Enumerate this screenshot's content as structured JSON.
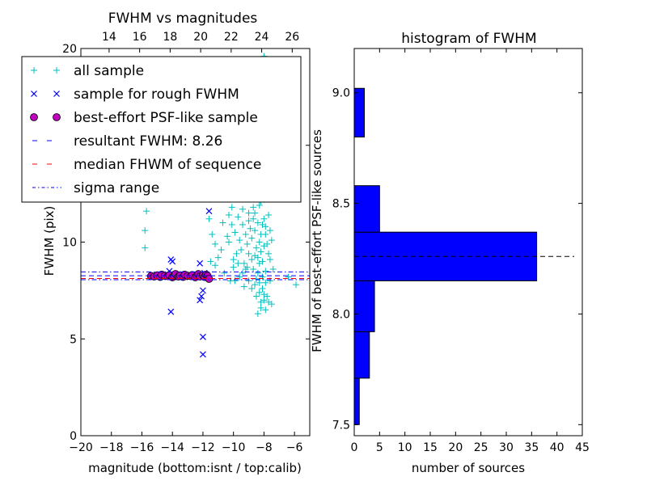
{
  "chart_data": [
    {
      "type": "scatter",
      "title": "FWHM vs magnitudes",
      "xlabel": "magnitude (bottom:isnt / top:calib)",
      "ylabel": "FWHM (pix)",
      "xlim": [
        -20,
        -5
      ],
      "ylim": [
        0,
        20
      ],
      "x_ticks": [
        -20,
        -18,
        -16,
        -14,
        -12,
        -10,
        -8,
        -6
      ],
      "x_tick_labels": [
        "−20",
        "−18",
        "−16",
        "−14",
        "−12",
        "−10",
        "−8",
        "−6"
      ],
      "y_ticks": [
        0,
        5,
        10,
        15,
        20
      ],
      "y_tick_labels": [
        "0",
        "5",
        "10",
        "15",
        "20"
      ],
      "top_axis": {
        "ticks": [
          14,
          16,
          18,
          20,
          22,
          24,
          26
        ],
        "offset": 32.15
      },
      "legend": {
        "placement": "upper-left",
        "entries": [
          {
            "marker": "plus",
            "color": "#00BFBF",
            "label": "all sample"
          },
          {
            "marker": "x",
            "color": "#0000FF",
            "label": "sample for rough FWHM"
          },
          {
            "marker": "circle",
            "color": "#BF00BF",
            "label": "best-effort PSF-like sample"
          },
          {
            "marker": "dash",
            "color": "#0000FF",
            "label": "resultant FWHM: 8.26"
          },
          {
            "marker": "dash",
            "color": "#FF0000",
            "label": "median FHWM of sequence"
          },
          {
            "marker": "dashdot",
            "color": "#0000FF",
            "label": "sigma range"
          }
        ]
      },
      "series": [
        {
          "name": "all sample",
          "marker": "plus",
          "color": "#00BFBF",
          "points": [
            [
              -15.7,
              11.6
            ],
            [
              -15.8,
              10.6
            ],
            [
              -15.8,
              9.7
            ],
            [
              -15.2,
              15.8
            ],
            [
              -12.2,
              14.0
            ],
            [
              -12.1,
              15.0
            ],
            [
              -11.2,
              14.5
            ],
            [
              -10.3,
              10.0
            ],
            [
              -10.4,
              10.3
            ],
            [
              -11.0,
              9.2
            ],
            [
              -10.6,
              8.4
            ],
            [
              -10.2,
              8.0
            ],
            [
              -11.2,
              8.8
            ],
            [
              -10.8,
              9.6
            ],
            [
              -9.5,
              12.8
            ],
            [
              -9.0,
              11.5
            ],
            [
              -9.2,
              8.6
            ],
            [
              -8.8,
              10.2
            ],
            [
              -8.6,
              9.3
            ],
            [
              -8.3,
              8.9
            ],
            [
              -8.1,
              7.6
            ],
            [
              -8.0,
              7.0
            ],
            [
              -8.2,
              6.6
            ],
            [
              -8.4,
              6.3
            ],
            [
              -7.8,
              7.2
            ],
            [
              -7.5,
              6.8
            ],
            [
              -7.4,
              8.6
            ],
            [
              -6.4,
              8.2
            ],
            [
              -5.9,
              7.8
            ],
            [
              -8.7,
              11.8
            ],
            [
              -8.9,
              13.3
            ],
            [
              -9.3,
              14.1
            ],
            [
              -8.1,
              13.7
            ],
            [
              -8.5,
              12.6
            ],
            [
              -8.2,
              12.1
            ],
            [
              -9.8,
              9.4
            ],
            [
              -10.0,
              8.7
            ],
            [
              -9.6,
              8.2
            ],
            [
              -9.9,
              8.0
            ],
            [
              -7.9,
              10.8
            ],
            [
              -8.0,
              11.2
            ],
            [
              -8.3,
              10.0
            ],
            [
              -8.6,
              10.6
            ],
            [
              -8.1,
              9.0
            ],
            [
              -8.4,
              9.2
            ],
            [
              -8.0,
              9.8
            ],
            [
              -7.7,
              9.4
            ],
            [
              -7.6,
              8.0
            ],
            [
              -7.9,
              7.9
            ],
            [
              -8.3,
              7.4
            ],
            [
              -8.6,
              7.8
            ],
            [
              -9.1,
              9.9
            ],
            [
              -9.4,
              10.9
            ],
            [
              -9.7,
              11.3
            ],
            [
              -10.1,
              11.8
            ],
            [
              -10.4,
              12.3
            ],
            [
              -10.6,
              13.4
            ],
            [
              -10.9,
              12.6
            ],
            [
              -9.1,
              12.3
            ],
            [
              -8.8,
              12.9
            ],
            [
              -7.8,
              12.4
            ],
            [
              -8.2,
              14.5
            ],
            [
              -8.6,
              15.2
            ],
            [
              -9.4,
              16.0
            ],
            [
              -9.8,
              17.2
            ],
            [
              -10.2,
              18.1
            ],
            [
              -8.9,
              18.9
            ],
            [
              -8.0,
              19.6
            ],
            [
              -9.0,
              20.2
            ],
            [
              -10.5,
              14.6
            ],
            [
              -10.9,
              15.4
            ],
            [
              -11.3,
              13.1
            ],
            [
              -11.5,
              12.2
            ],
            [
              -11.6,
              11.2
            ],
            [
              -11.4,
              10.4
            ],
            [
              -11.5,
              9.0
            ],
            [
              -11.2,
              9.9
            ],
            [
              -10.7,
              11.0
            ],
            [
              -10.0,
              9.1
            ],
            [
              -9.5,
              9.6
            ],
            [
              -9.3,
              8.9
            ],
            [
              -9.0,
              9.4
            ],
            [
              -8.7,
              8.6
            ],
            [
              -8.5,
              8.1
            ],
            [
              -8.4,
              8.4
            ],
            [
              -8.1,
              8.2
            ],
            [
              -7.9,
              8.5
            ],
            [
              -7.6,
              9.1
            ],
            [
              -7.8,
              9.9
            ],
            [
              -8.2,
              10.4
            ],
            [
              -8.4,
              11.0
            ],
            [
              -8.6,
              11.5
            ],
            [
              -8.3,
              11.9
            ],
            [
              -8.0,
              12.2
            ],
            [
              -7.7,
              11.4
            ],
            [
              -7.5,
              10.1
            ],
            [
              -7.6,
              10.6
            ],
            [
              -8.9,
              10.7
            ],
            [
              -9.2,
              10.4
            ],
            [
              -9.6,
              10.1
            ],
            [
              -9.9,
              10.5
            ],
            [
              -10.1,
              10.9
            ],
            [
              -10.3,
              11.4
            ],
            [
              -9.4,
              11.7
            ],
            [
              -9.0,
              11.1
            ],
            [
              -8.7,
              11.2
            ],
            [
              -8.1,
              10.9
            ],
            [
              -7.9,
              10.4
            ],
            [
              -8.2,
              9.5
            ],
            [
              -8.5,
              9.7
            ],
            [
              -8.8,
              9.1
            ],
            [
              -9.1,
              8.7
            ],
            [
              -9.4,
              8.4
            ],
            [
              -9.7,
              8.9
            ],
            [
              -8.3,
              7.9
            ],
            [
              -8.0,
              7.3
            ],
            [
              -7.7,
              6.9
            ],
            [
              -7.9,
              6.5
            ],
            [
              -8.2,
              6.9
            ],
            [
              -8.5,
              7.2
            ],
            [
              -8.8,
              7.6
            ],
            [
              -9.0,
              8.0
            ],
            [
              -9.3,
              7.7
            ]
          ]
        },
        {
          "name": "sample for rough FWHM",
          "marker": "x",
          "color": "#0000FF",
          "points": [
            [
              -14.1,
              9.1
            ],
            [
              -14.0,
              9.0
            ],
            [
              -14.2,
              8.5
            ],
            [
              -14.1,
              6.4
            ],
            [
              -12.2,
              8.9
            ],
            [
              -11.6,
              11.6
            ],
            [
              -12.1,
              7.2
            ],
            [
              -12.2,
              7.0
            ],
            [
              -12.0,
              7.5
            ],
            [
              -12.0,
              5.1
            ],
            [
              -12.0,
              4.2
            ],
            [
              -13.1,
              8.3
            ],
            [
              -12.5,
              8.2
            ],
            [
              -11.9,
              8.4
            ],
            [
              -12.6,
              8.3
            ],
            [
              -14.6,
              8.2
            ],
            [
              -13.6,
              8.3
            ]
          ]
        },
        {
          "name": "best-effort PSF-like sample",
          "marker": "circle",
          "color": "#BF00BF",
          "points": [
            [
              -15.4,
              8.25
            ],
            [
              -15.2,
              8.22
            ],
            [
              -15.0,
              8.28
            ],
            [
              -14.8,
              8.2
            ],
            [
              -14.7,
              8.32
            ],
            [
              -14.5,
              8.26
            ],
            [
              -14.3,
              8.24
            ],
            [
              -14.2,
              8.3
            ],
            [
              -14.0,
              8.18
            ],
            [
              -13.9,
              8.27
            ],
            [
              -13.8,
              8.35
            ],
            [
              -13.6,
              8.22
            ],
            [
              -13.5,
              8.28
            ],
            [
              -13.3,
              8.2
            ],
            [
              -13.2,
              8.32
            ],
            [
              -13.0,
              8.26
            ],
            [
              -12.8,
              8.24
            ],
            [
              -12.7,
              8.3
            ],
            [
              -12.5,
              8.18
            ],
            [
              -12.4,
              8.27
            ],
            [
              -12.3,
              8.35
            ],
            [
              -12.2,
              8.22
            ],
            [
              -12.0,
              8.28
            ],
            [
              -11.9,
              8.2
            ],
            [
              -11.8,
              8.32
            ],
            [
              -11.7,
              8.26
            ],
            [
              -11.6,
              8.1
            ]
          ]
        }
      ],
      "hlines": [
        {
          "y": 8.26,
          "style": "dashed",
          "color": "#0000FF"
        },
        {
          "y": 8.12,
          "style": "dashed",
          "color": "#FF0000"
        },
        {
          "y": 8.46,
          "style": "dashdot",
          "color": "#0000FF"
        },
        {
          "y": 8.06,
          "style": "dashdot",
          "color": "#0000FF"
        }
      ]
    },
    {
      "type": "bar",
      "orientation": "horizontal",
      "title": "histogram of FWHM",
      "xlabel": "number of sources",
      "ylabel": "FWHM of best-effort PSF-like sources",
      "xlim": [
        0,
        45
      ],
      "ylim": [
        7.45,
        9.2
      ],
      "x_ticks": [
        0,
        5,
        10,
        15,
        20,
        25,
        30,
        35,
        40,
        45
      ],
      "y_ticks": [
        7.5,
        8.0,
        8.5,
        9.0
      ],
      "y_tick_labels": [
        "7.5",
        "8.0",
        "8.5",
        "9.0"
      ],
      "bar_color": "#0000FF",
      "bins": [
        {
          "from": 7.5,
          "to": 7.71,
          "count": 1
        },
        {
          "from": 7.71,
          "to": 7.92,
          "count": 3
        },
        {
          "from": 7.92,
          "to": 8.15,
          "count": 4
        },
        {
          "from": 8.15,
          "to": 8.37,
          "count": 36
        },
        {
          "from": 8.37,
          "to": 8.58,
          "count": 5
        },
        {
          "from": 8.58,
          "to": 8.8,
          "count": 0
        },
        {
          "from": 8.8,
          "to": 9.02,
          "count": 2
        }
      ],
      "reference_line": {
        "y": 8.26,
        "style": "dashed",
        "color": "#000000"
      }
    }
  ]
}
